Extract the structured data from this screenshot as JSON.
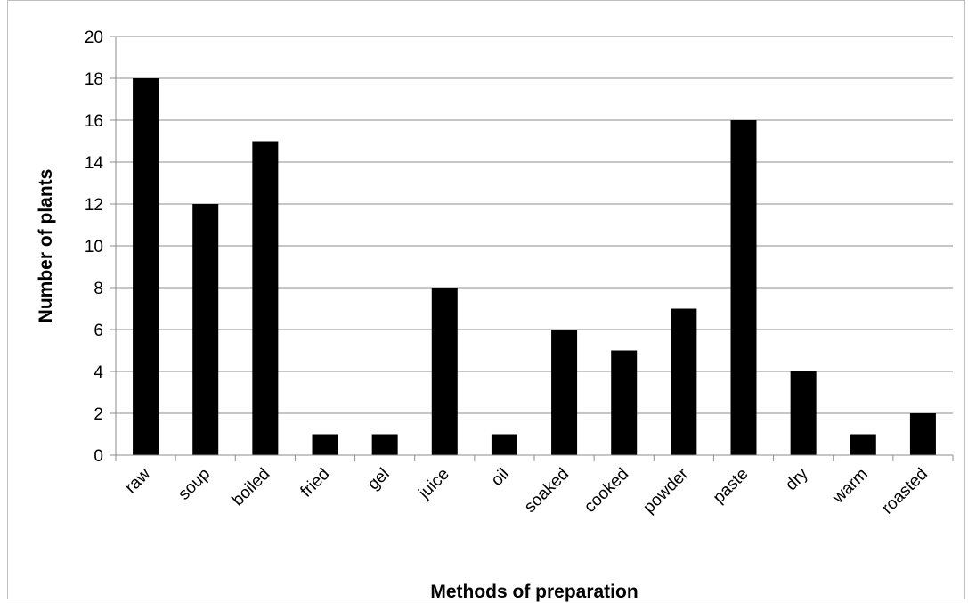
{
  "chart_data": {
    "type": "bar",
    "title": "",
    "xlabel": "Methods of preparation",
    "ylabel": "Number of plants",
    "categories": [
      "raw",
      "soup",
      "boiled",
      "fried",
      "gel",
      "juice",
      "oil",
      "soaked",
      "cooked",
      "powder",
      "paste",
      "dry",
      "warm",
      "roasted"
    ],
    "values": [
      18,
      12,
      15,
      1,
      1,
      8,
      1,
      6,
      5,
      7,
      16,
      4,
      1,
      2
    ],
    "ylim": [
      0,
      20
    ],
    "yticks": [
      0,
      2,
      4,
      6,
      8,
      10,
      12,
      14,
      16,
      18,
      20
    ],
    "grid": true,
    "legend": "none",
    "colors": {
      "bar": "#000000",
      "grid": "#8c8c8c",
      "axis": "#8c8c8c",
      "border": "#bfbfbf"
    }
  }
}
